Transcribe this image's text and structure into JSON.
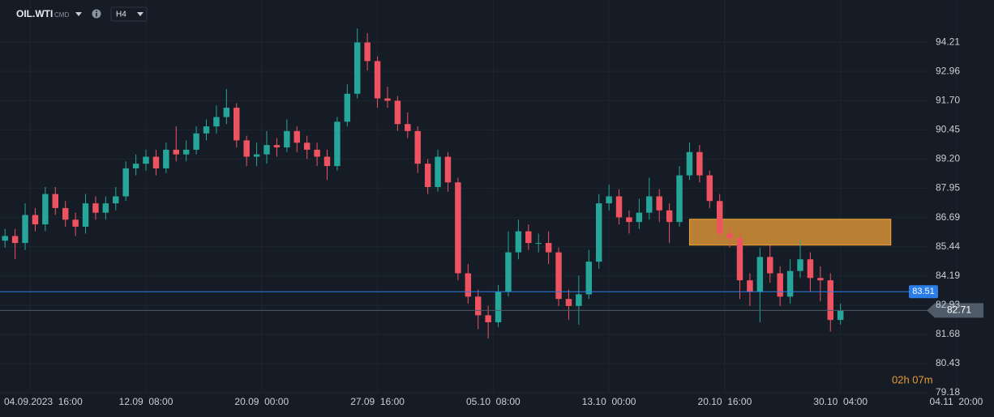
{
  "header": {
    "symbol": "OIL.WTI",
    "market": "CMD",
    "timeframe": "H4"
  },
  "chart_data": {
    "type": "candlestick",
    "x": [
      -10,
      -6,
      -2,
      2,
      6,
      10,
      14,
      18,
      22,
      26,
      30,
      34,
      38,
      42,
      46,
      50,
      54,
      58,
      62,
      66,
      70,
      74,
      78,
      82,
      86,
      90,
      94,
      98,
      102,
      106,
      110,
      114,
      118,
      122,
      126,
      130,
      134,
      138,
      142,
      146,
      150,
      154,
      158,
      162,
      166,
      170,
      174,
      178,
      182,
      186,
      190,
      194,
      198,
      202,
      206,
      210,
      214,
      218,
      222,
      226,
      230,
      234,
      238,
      242,
      246,
      250,
      254,
      258,
      262,
      266,
      270,
      274,
      278,
      282,
      286,
      290,
      294,
      298,
      302,
      306,
      310,
      314,
      318,
      322
    ],
    "open": [
      85.7,
      85.9,
      85.6,
      86.8,
      86.4,
      87.7,
      87.1,
      86.6,
      86.3,
      87.3,
      86.9,
      87.3,
      87.6,
      88.8,
      89.0,
      89.3,
      88.8,
      89.6,
      89.4,
      89.6,
      90.3,
      90.6,
      91.0,
      91.4,
      90.0,
      89.3,
      89.4,
      89.8,
      89.7,
      90.4,
      89.9,
      89.6,
      89.3,
      88.9,
      90.8,
      92.0,
      94.2,
      93.4,
      91.8,
      91.7,
      90.7,
      90.4,
      89.0,
      88.0,
      89.3,
      88.2,
      84.3,
      83.3,
      82.5,
      82.2,
      83.5,
      85.2,
      86.1,
      85.6,
      85.6,
      85.2,
      83.2,
      82.9,
      83.4,
      84.8,
      87.3,
      87.6,
      86.7,
      86.5,
      86.9,
      87.6,
      87.0,
      86.5,
      88.5,
      89.5,
      88.5,
      87.4,
      86.0,
      85.8,
      84.0,
      83.5,
      85.0,
      84.3,
      83.3,
      84.4,
      84.9,
      84.1,
      84.0,
      82.3
    ],
    "high": [
      86.2,
      86.2,
      87.3,
      87.1,
      88.0,
      88.0,
      87.4,
      86.9,
      87.7,
      87.6,
      87.6,
      88.0,
      89.1,
      89.4,
      89.6,
      89.6,
      89.9,
      90.6,
      90.0,
      90.6,
      90.9,
      91.5,
      92.2,
      91.6,
      90.2,
      89.9,
      90.4,
      90.1,
      90.9,
      90.6,
      90.2,
      89.9,
      89.6,
      91.0,
      92.4,
      94.8,
      94.6,
      93.6,
      92.3,
      91.9,
      91.2,
      90.6,
      89.2,
      89.6,
      89.5,
      88.4,
      84.7,
      83.6,
      82.9,
      83.8,
      86.1,
      86.6,
      86.4,
      86.0,
      86.1,
      85.4,
      83.6,
      84.2,
      85.3,
      87.7,
      88.1,
      87.9,
      87.0,
      87.5,
      88.4,
      87.9,
      87.3,
      88.9,
      89.9,
      89.8,
      88.7,
      87.7,
      86.3,
      86.0,
      84.3,
      85.4,
      85.5,
      84.6,
      84.9,
      85.7,
      85.2,
      84.6,
      84.3,
      83.0
    ],
    "low": [
      85.4,
      84.9,
      85.3,
      86.1,
      86.1,
      86.8,
      86.3,
      85.9,
      86.0,
      86.6,
      86.6,
      87.0,
      87.4,
      88.5,
      88.7,
      88.5,
      88.6,
      89.1,
      89.1,
      89.4,
      90.0,
      90.3,
      90.7,
      89.7,
      88.9,
      88.9,
      89.0,
      89.3,
      89.5,
      89.5,
      89.2,
      88.9,
      88.3,
      88.7,
      90.6,
      91.8,
      93.0,
      91.4,
      91.4,
      90.4,
      90.1,
      88.6,
      87.7,
      87.8,
      87.8,
      84.0,
      83.0,
      81.9,
      81.5,
      82.0,
      83.3,
      84.9,
      85.3,
      85.2,
      84.7,
      82.9,
      82.3,
      82.1,
      83.2,
      84.5,
      87.0,
      86.4,
      86.0,
      86.2,
      86.6,
      86.5,
      85.6,
      86.3,
      88.3,
      88.2,
      87.1,
      85.7,
      85.4,
      83.2,
      82.9,
      82.2,
      83.9,
      82.9,
      83.0,
      84.1,
      83.5,
      83.1,
      81.8,
      82.1
    ],
    "close": [
      85.9,
      85.6,
      86.8,
      86.4,
      87.7,
      87.1,
      86.6,
      86.3,
      87.3,
      86.9,
      87.3,
      87.6,
      88.8,
      89.0,
      89.3,
      88.8,
      89.6,
      89.4,
      89.6,
      90.3,
      90.6,
      91.0,
      91.4,
      90.0,
      89.3,
      89.4,
      89.8,
      89.7,
      90.4,
      89.9,
      89.6,
      89.3,
      88.9,
      90.8,
      92.0,
      94.2,
      93.4,
      91.8,
      91.7,
      90.7,
      90.4,
      89.0,
      88.0,
      89.3,
      88.2,
      84.3,
      83.3,
      82.5,
      82.2,
      83.5,
      85.2,
      86.1,
      85.6,
      85.6,
      85.2,
      83.2,
      82.9,
      83.4,
      84.8,
      87.3,
      87.6,
      86.7,
      86.5,
      86.9,
      87.6,
      87.0,
      86.5,
      88.5,
      89.5,
      88.5,
      87.4,
      86.0,
      85.8,
      84.0,
      83.5,
      85.0,
      84.3,
      83.3,
      84.4,
      84.9,
      84.1,
      84.0,
      82.3,
      82.71
    ],
    "up_color": "#26a69a",
    "down_color": "#ef5361",
    "grid": true,
    "xlim": [
      -12,
      383
    ],
    "xticks": [
      {
        "value": 0,
        "label": "04.09.2023  16:00"
      },
      {
        "value": 46,
        "label": "12.09  08:00"
      },
      {
        "value": 92,
        "label": "20.09  00:00"
      },
      {
        "value": 138,
        "label": "27.09  16:00"
      },
      {
        "value": 184,
        "label": "05.10  08:00"
      },
      {
        "value": 230,
        "label": "13.10  00:00"
      },
      {
        "value": 276,
        "label": "20.10  16:00"
      },
      {
        "value": 322,
        "label": "30.10  04:00"
      },
      {
        "value": 368,
        "label": "04.11  20:00"
      }
    ],
    "ylim": [
      79.18,
      96.02
    ],
    "yticks": [
      79.18,
      80.43,
      81.68,
      82.93,
      84.19,
      85.44,
      86.69,
      87.95,
      {
        "value": 89.2,
        "label": "89.20"
      },
      90.45,
      {
        "value": 91.7,
        "label": "91.70"
      },
      92.96,
      94.21
    ],
    "price_lines": [
      {
        "value": 83.51,
        "color": "#2b7de9"
      },
      {
        "value": 82.71,
        "color": "#4f5b69"
      }
    ],
    "zone": {
      "x": [
        262,
        342
      ],
      "y": [
        85.51,
        86.62
      ],
      "color": "#f0a23a"
    },
    "countdown": "02h 07m"
  }
}
